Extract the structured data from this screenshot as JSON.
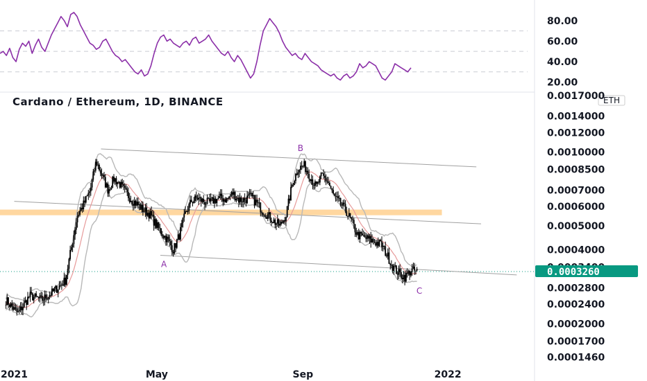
{
  "chart_data": [
    {
      "type": "line",
      "panel": "oscillator",
      "ylim": [
        15,
        92
      ],
      "y_ticks": [
        "80.00",
        "60.00",
        "40.00",
        "20.00"
      ],
      "y_tick_values": [
        80,
        60,
        40,
        20
      ],
      "guide_levels": [
        70,
        50,
        30
      ],
      "color": "#8b2fa8",
      "series": [
        {
          "values": [
            48,
            50,
            46,
            53,
            44,
            40,
            52,
            58,
            55,
            60,
            48,
            56,
            62,
            54,
            50,
            58,
            66,
            72,
            78,
            84,
            80,
            74,
            86,
            88,
            84,
            76,
            70,
            64,
            58,
            56,
            52,
            54,
            60,
            62,
            56,
            50,
            46,
            44,
            40,
            42,
            38,
            34,
            30,
            28,
            32,
            26,
            28,
            36,
            48,
            58,
            64,
            66,
            60,
            62,
            58,
            56,
            54,
            58,
            60,
            56,
            62,
            64,
            58,
            60,
            62,
            66,
            60,
            56,
            52,
            48,
            46,
            50,
            44,
            40,
            46,
            42,
            36,
            30,
            24,
            28,
            40,
            56,
            70,
            76,
            82,
            78,
            74,
            68,
            60,
            54,
            50,
            46,
            48,
            44,
            42,
            48,
            44,
            40,
            38,
            36,
            32,
            30,
            28,
            26,
            28,
            24,
            22,
            26,
            28,
            24,
            26,
            30,
            38,
            34,
            36,
            40,
            38,
            36,
            30,
            24,
            22,
            26,
            30,
            38,
            36,
            34,
            32,
            30,
            34
          ]
        }
      ]
    },
    {
      "type": "candlestick",
      "panel": "price",
      "title": "Cardano / Ethereum, 1D, BINANCE",
      "unit_label": "ETH",
      "y_scale": "log",
      "ylim": [
        0.000142,
        0.00172
      ],
      "y_ticks": [
        "0.0017000",
        "0.0014000",
        "0.0012000",
        "0.0010000",
        "0.0008500",
        "0.0007000",
        "0.0006000",
        "0.0005000",
        "0.0004000",
        "0.0003400",
        "0.0002800",
        "0.0002400",
        "0.0002000",
        "0.0001700",
        "0.0001460"
      ],
      "y_tick_values": [
        0.0017,
        0.0014,
        0.0012,
        0.001,
        0.00085,
        0.0007,
        0.0006,
        0.0005,
        0.0004,
        0.00034,
        0.00028,
        0.00024,
        0.0002,
        0.00017,
        0.000146
      ],
      "x_ticks": [
        "2021",
        "May",
        "Sep",
        "2022"
      ],
      "x_tick_dates": [
        "2021-01-01",
        "2021-05-01",
        "2021-09-01",
        "2022-01-01"
      ],
      "date_range": [
        "2020-12-20",
        "2022-03-15"
      ],
      "last_price": "0.0003260",
      "last_price_value": 0.000326,
      "series": [
        {
          "x": [
            "2020-12-25",
            "2021-01-04",
            "2021-01-14",
            "2021-01-24",
            "2021-02-03",
            "2021-02-13",
            "2021-02-23",
            "2021-03-01",
            "2021-03-06",
            "2021-03-11",
            "2021-03-16",
            "2021-03-21",
            "2021-03-26",
            "2021-03-31",
            "2021-04-05",
            "2021-04-10",
            "2021-04-15",
            "2021-04-20",
            "2021-04-25",
            "2021-04-30",
            "2021-05-05",
            "2021-05-10",
            "2021-05-15",
            "2021-05-20",
            "2021-05-25",
            "2021-05-30",
            "2021-06-04",
            "2021-06-09",
            "2021-06-14",
            "2021-06-19",
            "2021-06-24",
            "2021-06-29",
            "2021-07-04",
            "2021-07-09",
            "2021-07-14",
            "2021-07-19",
            "2021-07-24",
            "2021-07-29",
            "2021-08-03",
            "2021-08-08",
            "2021-08-13",
            "2021-08-18",
            "2021-08-23",
            "2021-08-28",
            "2021-09-02",
            "2021-09-07",
            "2021-09-12",
            "2021-09-17",
            "2021-09-22",
            "2021-09-27",
            "2021-10-02",
            "2021-10-07",
            "2021-10-12",
            "2021-10-17",
            "2021-10-22",
            "2021-10-27",
            "2021-11-01",
            "2021-11-06",
            "2021-11-11",
            "2021-11-16",
            "2021-11-21",
            "2021-11-26",
            "2021-12-01",
            "2021-12-06"
          ],
          "values": [
            0.00025,
            0.00022,
            0.00026,
            0.00025,
            0.00027,
            0.0003,
            0.00055,
            0.00062,
            0.0007,
            0.00092,
            0.0008,
            0.0007,
            0.00078,
            0.00074,
            0.00068,
            0.00064,
            0.00061,
            0.00058,
            0.00056,
            0.00051,
            0.00047,
            0.00044,
            0.0004,
            0.00046,
            0.00056,
            0.00063,
            0.00065,
            0.00063,
            0.00062,
            0.00064,
            0.00065,
            0.00064,
            0.00068,
            0.00064,
            0.00064,
            0.00066,
            0.00062,
            0.00058,
            0.00055,
            0.00052,
            0.0005,
            0.00056,
            0.00074,
            0.00086,
            0.00088,
            0.0008,
            0.00072,
            0.0008,
            0.00076,
            0.00066,
            0.00062,
            0.00058,
            0.00052,
            0.00046,
            0.00045,
            0.00044,
            0.00043,
            0.00042,
            0.00038,
            0.00034,
            0.00032,
            0.00031,
            0.00033,
            0.000326
          ]
        }
      ],
      "annotations": [
        {
          "text": "A",
          "date": "2021-05-07",
          "value": 0.00034
        },
        {
          "text": "B",
          "date": "2021-08-30",
          "value": 0.00101
        },
        {
          "text": "C",
          "date": "2021-12-08",
          "value": 0.000265
        }
      ],
      "trendlines": [
        {
          "points": [
            [
              "2021-03-15",
              0.00103
            ],
            [
              "2022-01-25",
              0.00087
            ]
          ]
        },
        {
          "points": [
            [
              "2021-01-01",
              0.00063
            ],
            [
              "2022-01-29",
              0.00051
            ]
          ]
        },
        {
          "points": [
            [
              "2021-05-04",
              0.00038
            ],
            [
              "2022-02-28",
              0.000316
            ]
          ]
        }
      ],
      "zone": {
        "range": [
          0.000553,
          0.000583
        ],
        "dates": [
          "2020-12-20",
          "2021-12-27"
        ],
        "color": "#ffd7a0"
      },
      "colors": {
        "candle": "#000000",
        "band": "#b8b8b8",
        "moving_average": "#e79a9a",
        "trendline": "#a0a0a0",
        "last_price": "#089981"
      }
    }
  ]
}
